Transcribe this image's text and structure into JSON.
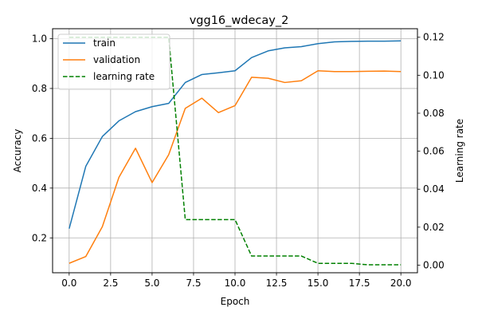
{
  "chart_data": {
    "type": "line",
    "title": "vgg16_wdecay_2",
    "xlabel": "Epoch",
    "ylabel": "Accuracy",
    "y2label": "Learning rate",
    "xlim": [
      -1,
      21
    ],
    "ylim": [
      0.06,
      1.04
    ],
    "y2lim": [
      -0.004,
      0.1245
    ],
    "grid": true,
    "legend_position": "top-left",
    "x_ticks": [
      "0.0",
      "2.5",
      "5.0",
      "7.5",
      "10.0",
      "12.5",
      "15.0",
      "17.5",
      "20.0"
    ],
    "y_ticks": [
      "0.2",
      "0.4",
      "0.6",
      "0.8",
      "1.0"
    ],
    "y2_ticks": [
      "0.00",
      "0.02",
      "0.04",
      "0.06",
      "0.08",
      "0.10",
      "0.12"
    ],
    "x": [
      0,
      1,
      2,
      3,
      4,
      5,
      6,
      7,
      8,
      9,
      10,
      11,
      12,
      13,
      14,
      15,
      16,
      17,
      18,
      19,
      20
    ],
    "series": [
      {
        "name": "train",
        "axis": "left",
        "color": "#1f77b4",
        "style": "solid",
        "values": [
          0.237,
          0.487,
          0.607,
          0.67,
          0.707,
          0.727,
          0.74,
          0.824,
          0.856,
          0.863,
          0.871,
          0.924,
          0.951,
          0.963,
          0.968,
          0.98,
          0.987,
          0.989,
          0.99,
          0.99,
          0.991
        ]
      },
      {
        "name": "validation",
        "axis": "left",
        "color": "#ff7f0e",
        "style": "solid",
        "values": [
          0.098,
          0.125,
          0.245,
          0.443,
          0.56,
          0.422,
          0.534,
          0.72,
          0.761,
          0.703,
          0.731,
          0.845,
          0.841,
          0.824,
          0.831,
          0.871,
          0.868,
          0.868,
          0.869,
          0.87,
          0.868
        ]
      },
      {
        "name": "learning rate",
        "axis": "right",
        "color": "#008000",
        "style": "dashed",
        "values": [
          0.12,
          0.12,
          0.12,
          0.12,
          0.12,
          0.12,
          0.12,
          0.024,
          0.024,
          0.024,
          0.024,
          0.0048,
          0.0048,
          0.0048,
          0.0048,
          0.00096,
          0.00096,
          0.00096,
          0.000192,
          0.000192,
          0.000192
        ]
      }
    ]
  }
}
